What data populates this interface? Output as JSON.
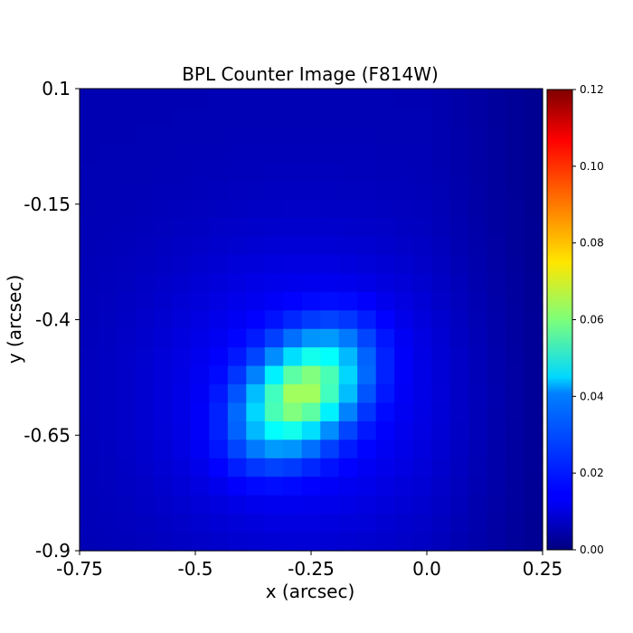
{
  "chart_data": {
    "type": "heatmap",
    "title": "BPL Counter Image (F814W)",
    "xlabel": "x (arcsec)",
    "ylabel": "y (arcsec)",
    "xlim": [
      -0.75,
      0.25
    ],
    "ylim": [
      -0.9,
      0.1
    ],
    "x_ticks": [
      "-0.75",
      "-0.5",
      "-0.25",
      "0.0",
      "0.25"
    ],
    "x_tick_values": [
      -0.75,
      -0.5,
      -0.25,
      0.0,
      0.25
    ],
    "y_ticks": [
      "0.1",
      "-0.15",
      "-0.4",
      "-0.65",
      "-0.9"
    ],
    "y_tick_values": [
      0.1,
      -0.15,
      -0.4,
      -0.65,
      -0.9
    ],
    "colormap": "jet",
    "colorbar": {
      "range": [
        0.0,
        0.12
      ],
      "ticks": [
        "0.00",
        "0.02",
        "0.04",
        "0.06",
        "0.08",
        "0.10",
        "0.12"
      ],
      "tick_values": [
        0.0,
        0.02,
        0.04,
        0.06,
        0.08,
        0.1,
        0.12
      ]
    },
    "grid": false,
    "pixel_size_arcsec": 0.04,
    "source": {
      "center_x": -0.27,
      "center_y": -0.56,
      "peak": 0.058,
      "background": 0.006
    }
  }
}
